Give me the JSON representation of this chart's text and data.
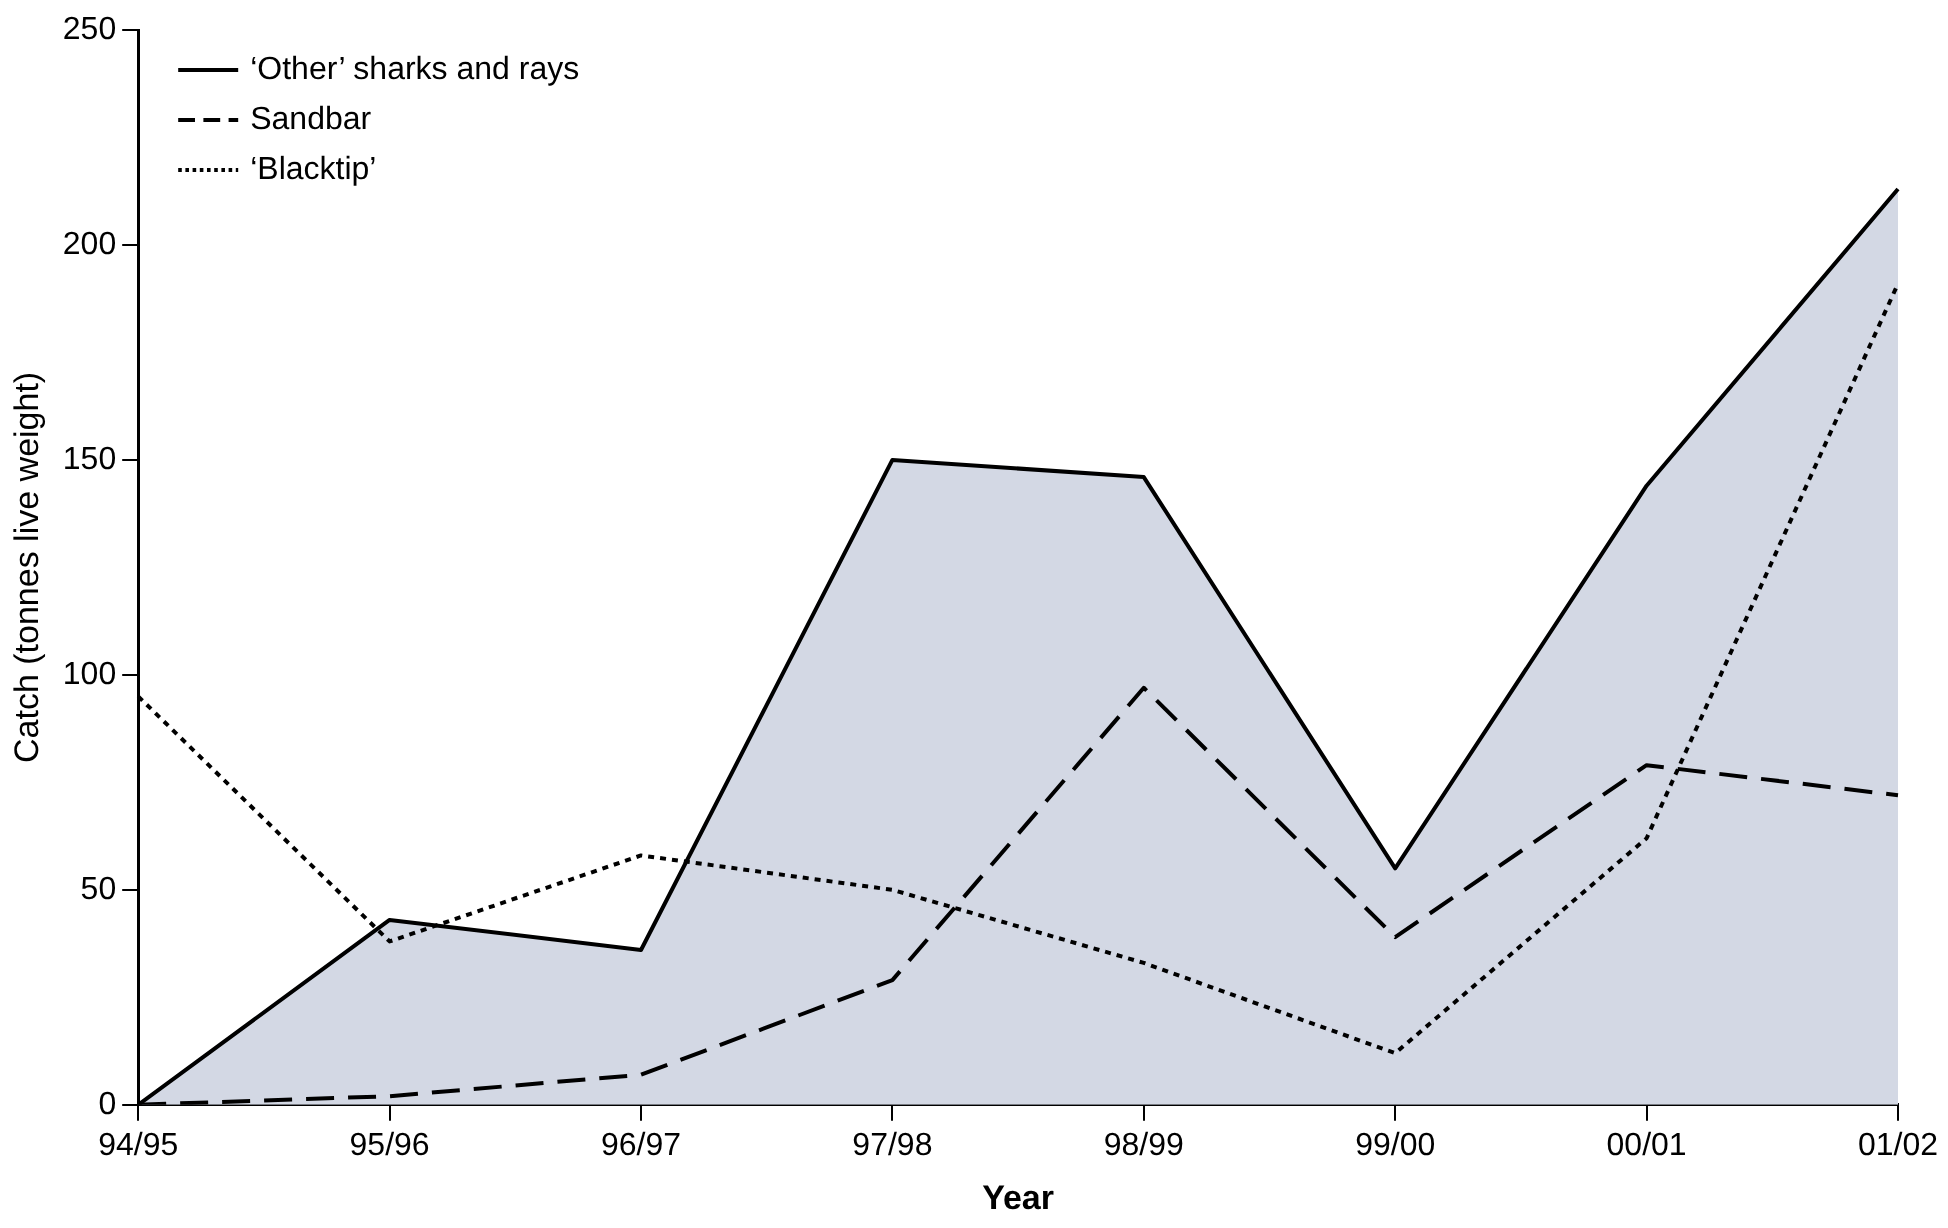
{
  "chart_data": {
    "type": "line",
    "xlabel": "Year",
    "ylabel": "Catch (tonnes live weight)",
    "categories": [
      "94/95",
      "95/96",
      "96/97",
      "97/98",
      "98/99",
      "99/00",
      "00/01",
      "01/02"
    ],
    "series": [
      {
        "name": "‘Other’ sharks and rays",
        "type": "area",
        "color": "#d3d8e4",
        "line_style": "solid",
        "values": [
          0,
          43,
          36,
          150,
          146,
          55,
          144,
          213
        ]
      },
      {
        "name": "Sandbar",
        "color": "#000000",
        "line_style": "dashed",
        "values": [
          0,
          2,
          7,
          29,
          97,
          39,
          79,
          72
        ]
      },
      {
        "name": "‘Blacktip’",
        "color": "#000000",
        "line_style": "dotted",
        "values": [
          95,
          38,
          58,
          50,
          33,
          12,
          62,
          191
        ]
      }
    ],
    "ylim": [
      0,
      250
    ],
    "yticks": [
      0,
      50,
      100,
      150,
      200,
      250
    ],
    "grid": false,
    "legend": "top left",
    "marker": "none"
  }
}
